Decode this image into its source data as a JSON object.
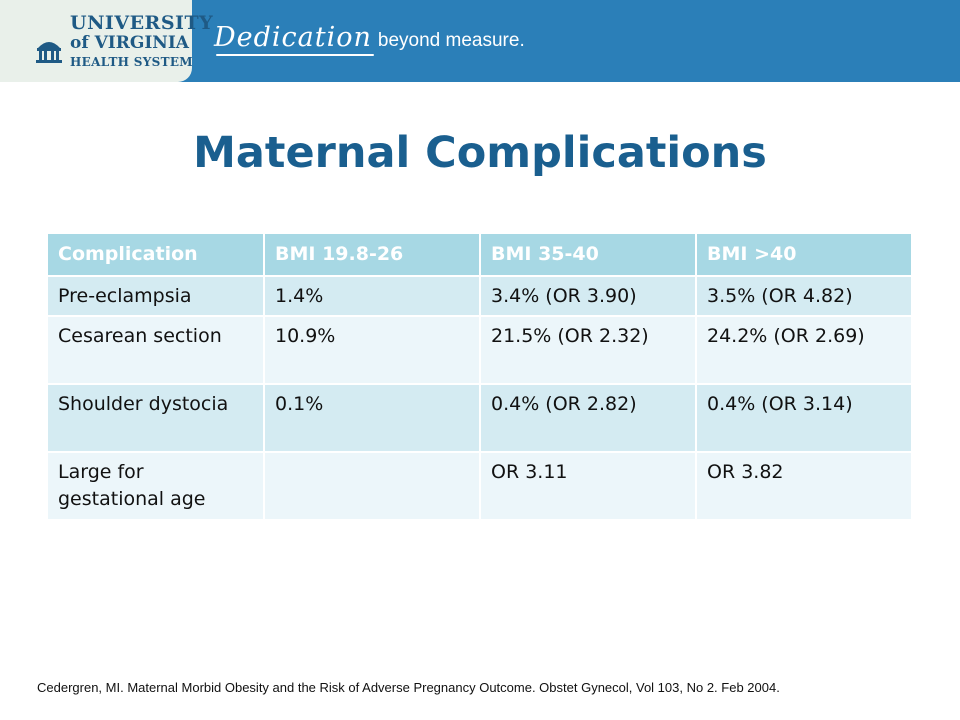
{
  "header": {
    "logo": {
      "line1": "UNIVERSITY",
      "line2": "of VIRGINIA",
      "line3": "HEALTH SYSTEM"
    },
    "tagline_script": "Dedication",
    "tagline_rest": "beyond measure."
  },
  "title": "Maternal Complications",
  "table": {
    "headers": [
      "Complication",
      "BMI 19.8-26",
      "BMI 35-40",
      "BMI >40"
    ],
    "rows": [
      [
        "Pre-eclampsia",
        "1.4%",
        "3.4% (OR 3.90)",
        "3.5% (OR 4.82)"
      ],
      [
        "Cesarean section",
        "10.9%",
        "21.5% (OR 2.32)",
        "24.2% (OR 2.69)"
      ],
      [
        "Shoulder dystocia",
        "0.1%",
        "0.4% (OR 2.82)",
        "0.4% (OR 3.14)"
      ],
      [
        "Large for gestational age",
        "",
        "OR 3.11",
        "OR 3.82"
      ]
    ]
  },
  "citation": "Cedergren, MI. Maternal Morbid Obesity and the Risk of Adverse Pregnancy Outcome. Obstet Gynecol, Vol 103, No 2. Feb 2004.",
  "colors": {
    "banner": "#2b7fb8",
    "title": "#1a5f8f",
    "table_header": "#a7d8e4",
    "row_odd": "#d4ebf2",
    "row_even": "#ecf6fa"
  }
}
